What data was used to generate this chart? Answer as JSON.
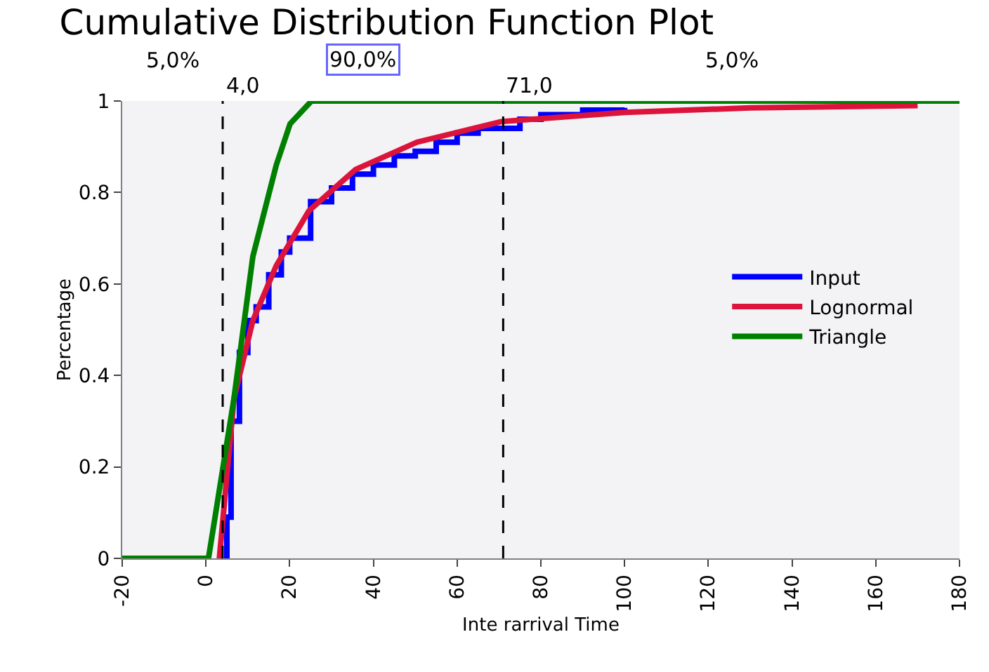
{
  "chart_data": {
    "type": "line",
    "title": "Cumulative Distribution Function Plot",
    "xlabel": "Inte rarrival Time",
    "ylabel": "Percentage",
    "xlim": [
      -20,
      180
    ],
    "ylim": [
      0,
      1
    ],
    "xticks": [
      -20,
      0,
      20,
      40,
      60,
      80,
      100,
      120,
      140,
      160,
      180
    ],
    "yticks": [
      0,
      0.2,
      0.4,
      0.6,
      0.8,
      1
    ],
    "grid": false,
    "legend": "right",
    "marker": "none",
    "line_style": "solid",
    "annotations": [
      "5,0%",
      "90,0%",
      "5,0%"
    ],
    "ref_lines": [
      {
        "axis": "x",
        "value": 4,
        "label": "4,0",
        "color": "#000000",
        "line_style": "dashed"
      },
      {
        "axis": "x",
        "value": 71,
        "label": "71,0",
        "color": "#000000",
        "line_style": "dashed"
      }
    ],
    "series": [
      {
        "name": "Input",
        "type": "step",
        "color": "#0000ff",
        "x": [
          5,
          5,
          6,
          8,
          10,
          12,
          15,
          18,
          20,
          25,
          30,
          35,
          40,
          45,
          50,
          55,
          60,
          65,
          70,
          75,
          80,
          90,
          100
        ],
        "values": [
          0,
          0.09,
          0.3,
          0.45,
          0.52,
          0.55,
          0.62,
          0.67,
          0.7,
          0.78,
          0.81,
          0.84,
          0.86,
          0.88,
          0.89,
          0.91,
          0.93,
          0.94,
          0.94,
          0.96,
          0.97,
          0.98,
          0.985
        ]
      },
      {
        "name": "Lognormal",
        "color": "#dc143c",
        "x": [
          3.2,
          6.7,
          11.2,
          16.8,
          24.6,
          35.7,
          50.4,
          70.5,
          100,
          130,
          170
        ],
        "values": [
          0,
          0.35,
          0.52,
          0.64,
          0.76,
          0.85,
          0.91,
          0.955,
          0.975,
          0.985,
          0.99
        ]
      },
      {
        "name": "Triangle",
        "color": "#008000",
        "x": [
          -20,
          0.6,
          6.7,
          11.2,
          16.8,
          20.1,
          25.2,
          180
        ],
        "values": [
          0,
          0,
          0.35,
          0.66,
          0.86,
          0.95,
          1,
          1
        ]
      }
    ]
  }
}
